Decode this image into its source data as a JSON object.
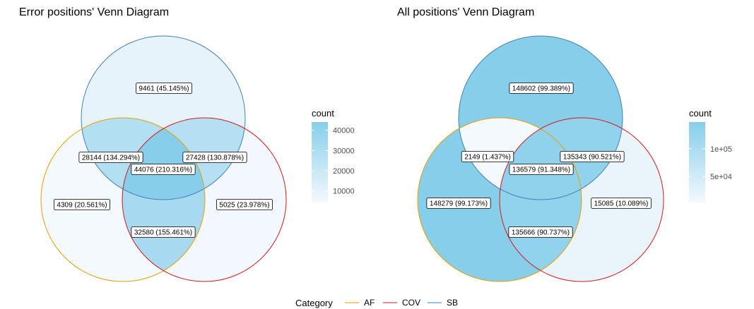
{
  "chart_data": [
    {
      "type": "venn",
      "title": "Error positions' Venn Diagram",
      "sets": [
        "AF",
        "COV",
        "SB"
      ],
      "regions": [
        {
          "sets": [
            "SB"
          ],
          "count": 9461,
          "label": "9461 (45.145%)"
        },
        {
          "sets": [
            "AF",
            "SB"
          ],
          "count": 28144,
          "label": "28144 (134.294%)"
        },
        {
          "sets": [
            "COV",
            "SB"
          ],
          "count": 27428,
          "label": "27428 (130.878%)"
        },
        {
          "sets": [
            "AF",
            "COV",
            "SB"
          ],
          "count": 44076,
          "label": "44076 (210.316%)"
        },
        {
          "sets": [
            "AF"
          ],
          "count": 4309,
          "label": "4309 (20.561%)"
        },
        {
          "sets": [
            "COV"
          ],
          "count": 5025,
          "label": "5025 (23.978%)"
        },
        {
          "sets": [
            "AF",
            "COV"
          ],
          "count": 32580,
          "label": "32580 (155.461%)"
        }
      ],
      "legend": {
        "title": "count",
        "ticks": [
          {
            "value": 10000,
            "label": "10000"
          },
          {
            "value": 20000,
            "label": "20000"
          },
          {
            "value": 30000,
            "label": "30000"
          },
          {
            "value": 40000,
            "label": "40000"
          }
        ]
      }
    },
    {
      "type": "venn",
      "title": "All positions' Venn Diagram",
      "sets": [
        "AF",
        "COV",
        "SB"
      ],
      "regions": [
        {
          "sets": [
            "SB"
          ],
          "count": 148602,
          "label": "148602 (99.389%)"
        },
        {
          "sets": [
            "AF",
            "SB"
          ],
          "count": 2149,
          "label": "2149 (1.437%)"
        },
        {
          "sets": [
            "COV",
            "SB"
          ],
          "count": 135343,
          "label": "135343 (90.521%)"
        },
        {
          "sets": [
            "AF",
            "COV",
            "SB"
          ],
          "count": 136579,
          "label": "136579 (91.348%)"
        },
        {
          "sets": [
            "AF"
          ],
          "count": 148279,
          "label": "148279 (99.173%)"
        },
        {
          "sets": [
            "COV"
          ],
          "count": 15085,
          "label": "15085 (10.089%)"
        },
        {
          "sets": [
            "AF",
            "COV"
          ],
          "count": 135666,
          "label": "135666 (90.737%)"
        }
      ],
      "legend": {
        "title": "count",
        "ticks": [
          {
            "value": 50000,
            "label": "5e+04"
          },
          {
            "value": 100000,
            "label": "1e+05"
          }
        ]
      }
    }
  ],
  "category_legend": {
    "title": "Category",
    "items": [
      {
        "name": "AF",
        "color": "#E69F00"
      },
      {
        "name": "COV",
        "color": "#D7191C"
      },
      {
        "name": "SB",
        "color": "#4682B4"
      }
    ]
  },
  "colors": {
    "low": "#F4F9FD",
    "high": "#87CEEB"
  }
}
